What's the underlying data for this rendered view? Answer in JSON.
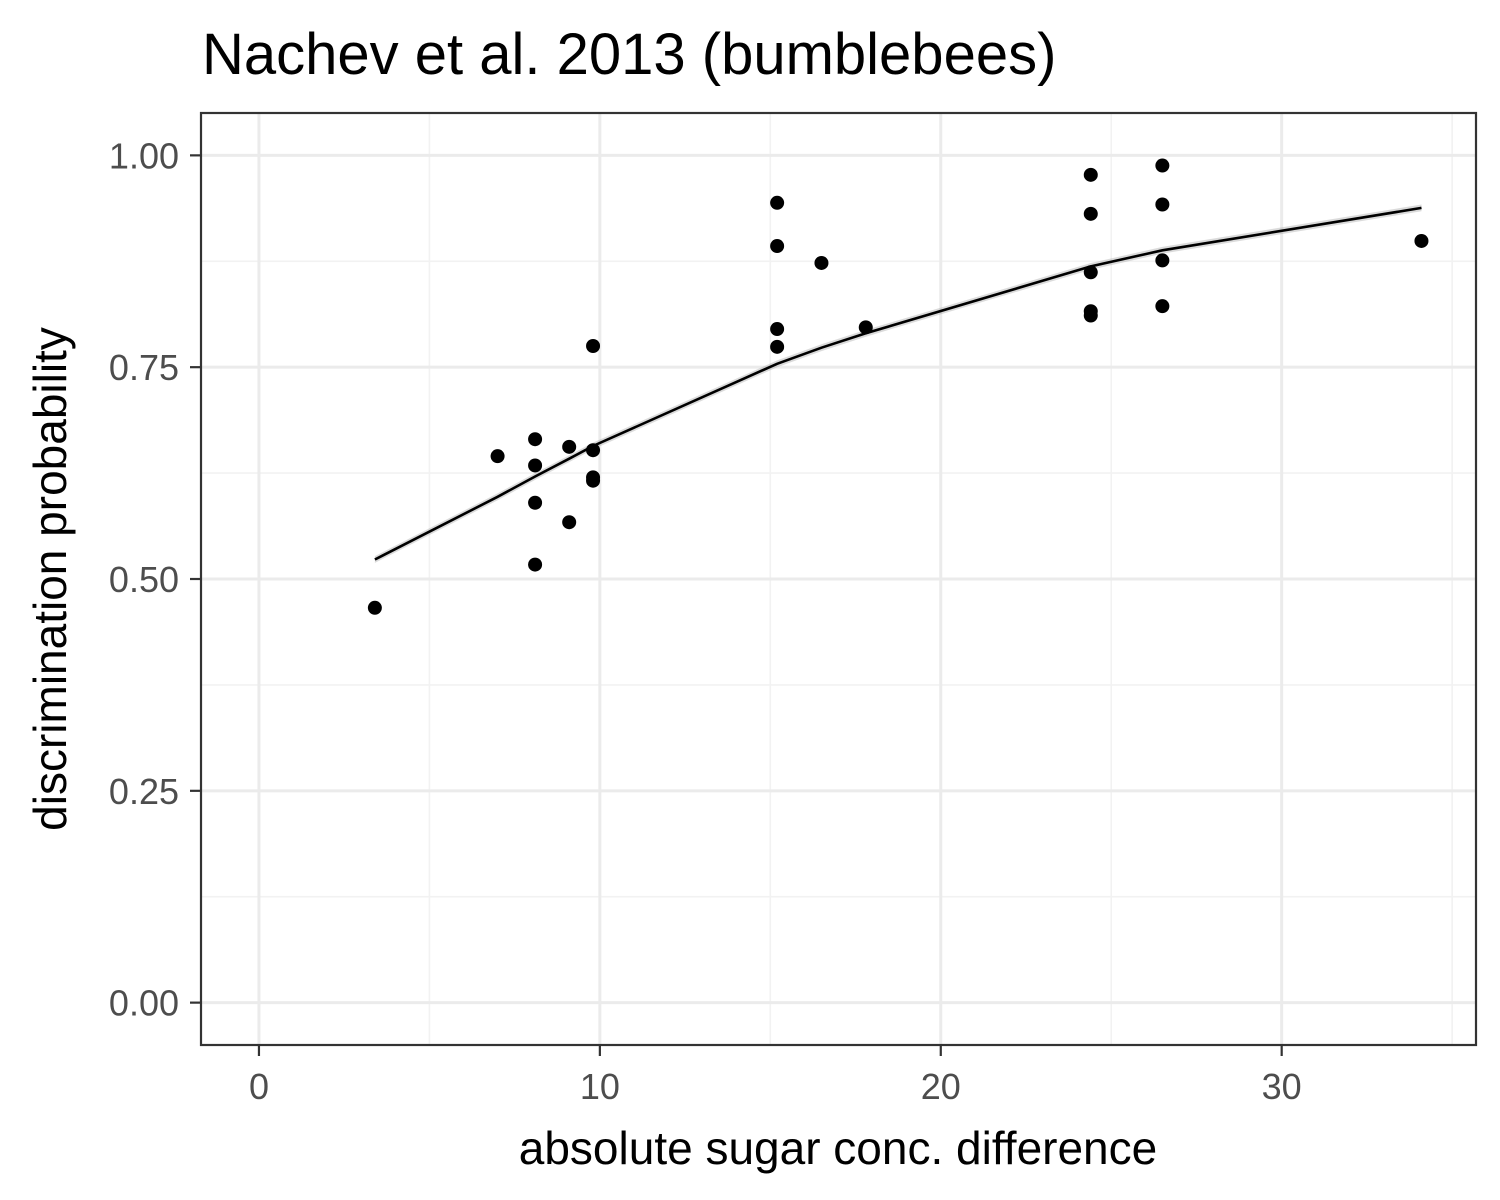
{
  "chart_data": {
    "type": "scatter",
    "title": "Nachev et al. 2013 (bumblebees)",
    "xlabel": "absolute sugar conc. difference",
    "ylabel": "discrimination probability",
    "xlim": [
      -1.7,
      35.7
    ],
    "ylim": [
      -0.05,
      1.05
    ],
    "x_ticks": [
      0,
      10,
      20,
      30
    ],
    "x_tick_labels": [
      "0",
      "10",
      "20",
      "30"
    ],
    "x_minor": [
      5,
      15,
      25,
      35
    ],
    "y_ticks": [
      0,
      0.25,
      0.5,
      0.75,
      1.0
    ],
    "y_tick_labels": [
      "0.00",
      "0.25",
      "0.50",
      "0.75",
      "1.00"
    ],
    "y_minor": [
      0.125,
      0.375,
      0.625,
      0.875
    ],
    "grid": true,
    "points": [
      {
        "x": 3.4,
        "y": 0.466
      },
      {
        "x": 7.0,
        "y": 0.645
      },
      {
        "x": 8.1,
        "y": 0.665
      },
      {
        "x": 8.1,
        "y": 0.634
      },
      {
        "x": 8.1,
        "y": 0.59
      },
      {
        "x": 8.1,
        "y": 0.517
      },
      {
        "x": 9.1,
        "y": 0.656
      },
      {
        "x": 9.1,
        "y": 0.567
      },
      {
        "x": 9.8,
        "y": 0.775
      },
      {
        "x": 9.8,
        "y": 0.652
      },
      {
        "x": 9.8,
        "y": 0.62
      },
      {
        "x": 9.8,
        "y": 0.616
      },
      {
        "x": 15.2,
        "y": 0.944
      },
      {
        "x": 15.2,
        "y": 0.893
      },
      {
        "x": 15.2,
        "y": 0.795
      },
      {
        "x": 15.2,
        "y": 0.774
      },
      {
        "x": 16.5,
        "y": 0.873
      },
      {
        "x": 17.8,
        "y": 0.797
      },
      {
        "x": 24.4,
        "y": 0.977
      },
      {
        "x": 24.4,
        "y": 0.931
      },
      {
        "x": 24.4,
        "y": 0.862
      },
      {
        "x": 24.4,
        "y": 0.816
      },
      {
        "x": 24.4,
        "y": 0.811
      },
      {
        "x": 26.5,
        "y": 0.988
      },
      {
        "x": 26.5,
        "y": 0.942
      },
      {
        "x": 26.5,
        "y": 0.876
      },
      {
        "x": 26.5,
        "y": 0.822
      },
      {
        "x": 34.1,
        "y": 0.899
      }
    ],
    "fit_line": [
      {
        "x": 3.4,
        "y": 0.523
      },
      {
        "x": 7.0,
        "y": 0.597
      },
      {
        "x": 8.1,
        "y": 0.621
      },
      {
        "x": 9.1,
        "y": 0.642
      },
      {
        "x": 9.8,
        "y": 0.657
      },
      {
        "x": 15.2,
        "y": 0.754
      },
      {
        "x": 16.5,
        "y": 0.773
      },
      {
        "x": 17.8,
        "y": 0.79
      },
      {
        "x": 24.4,
        "y": 0.869
      },
      {
        "x": 26.5,
        "y": 0.888
      },
      {
        "x": 34.1,
        "y": 0.938
      }
    ],
    "fit_band_halfwidth": 0.004,
    "colors": {
      "points": "#000000",
      "line": "#000000",
      "band": "#999999"
    }
  }
}
